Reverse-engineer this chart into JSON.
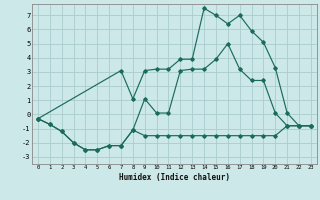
{
  "xlabel": "Humidex (Indice chaleur)",
  "bg_color": "#cce8e8",
  "grid_color": "#aacccc",
  "line_color": "#1a6b5a",
  "xlim": [
    -0.5,
    23.5
  ],
  "ylim": [
    -3.5,
    7.8
  ],
  "xticks": [
    0,
    1,
    2,
    3,
    4,
    5,
    6,
    7,
    8,
    9,
    10,
    11,
    12,
    13,
    14,
    15,
    16,
    17,
    18,
    19,
    20,
    21,
    22,
    23
  ],
  "yticks": [
    -3,
    -2,
    -1,
    0,
    1,
    2,
    3,
    4,
    5,
    6,
    7
  ],
  "line1_x": [
    0,
    1,
    2,
    3,
    4,
    5,
    6,
    7,
    8,
    9,
    10,
    11,
    12,
    13,
    14,
    15,
    16,
    17,
    18,
    19,
    20,
    21,
    22,
    23
  ],
  "line1_y": [
    -0.3,
    -0.7,
    -1.2,
    -2.0,
    -2.5,
    -2.5,
    -2.2,
    -2.2,
    -1.1,
    -1.5,
    -1.5,
    -1.5,
    -1.5,
    -1.5,
    -1.5,
    -1.5,
    -1.5,
    -1.5,
    -1.5,
    -1.5,
    -1.5,
    -0.8,
    -0.8,
    -0.8
  ],
  "line2_x": [
    0,
    1,
    2,
    3,
    4,
    5,
    6,
    7,
    8,
    9,
    10,
    11,
    12,
    13,
    14,
    15,
    16,
    17,
    18,
    19,
    20,
    21,
    22,
    23
  ],
  "line2_y": [
    -0.3,
    -0.7,
    -1.2,
    -2.0,
    -2.5,
    -2.5,
    -2.2,
    -2.2,
    -1.1,
    1.1,
    0.1,
    0.1,
    3.1,
    3.2,
    3.2,
    3.9,
    5.0,
    3.2,
    2.4,
    2.4,
    0.1,
    -0.8,
    -0.8,
    -0.8
  ],
  "line3_x": [
    0,
    7,
    8,
    9,
    10,
    11,
    12,
    13,
    14,
    15,
    16,
    17,
    18,
    19,
    20,
    21,
    22,
    23
  ],
  "line3_y": [
    -0.3,
    3.1,
    1.1,
    3.1,
    3.2,
    3.2,
    3.9,
    3.9,
    7.5,
    7.0,
    6.4,
    7.0,
    5.9,
    5.1,
    3.3,
    0.1,
    -0.8,
    -0.8
  ]
}
